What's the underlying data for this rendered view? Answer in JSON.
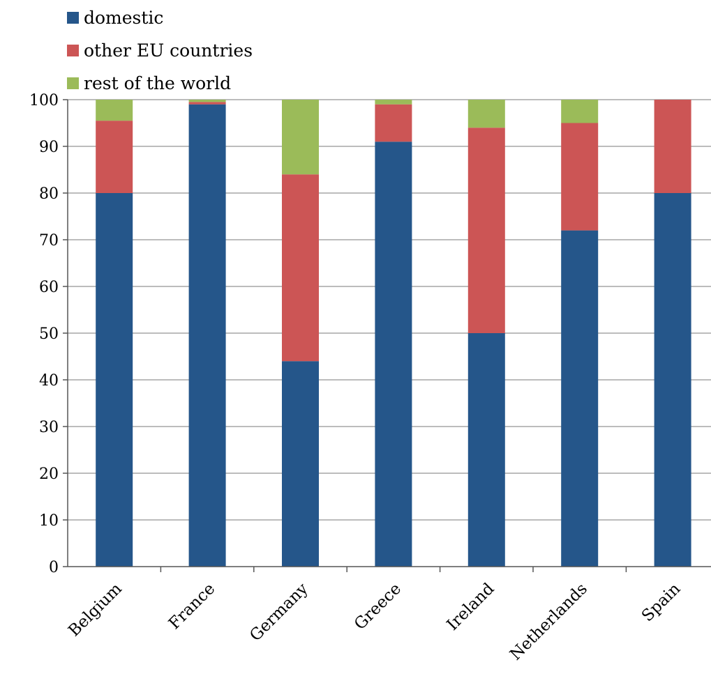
{
  "chart_data": {
    "type": "bar",
    "stacked": true,
    "categories": [
      "Belgium",
      "France",
      "Germany",
      "Greece",
      "Ireland",
      "Netherlands",
      "Spain"
    ],
    "series": [
      {
        "name": "domestic",
        "color": "#25568a",
        "values": [
          80,
          99,
          44,
          91,
          50,
          72,
          80
        ]
      },
      {
        "name": "other EU countries",
        "color": "#cc5555",
        "values": [
          15.5,
          0.5,
          40,
          8,
          44,
          23,
          20
        ]
      },
      {
        "name": "rest of the world",
        "color": "#9bbb59",
        "values": [
          4.5,
          0.5,
          16,
          1,
          6,
          5,
          0
        ]
      }
    ],
    "ylim": [
      0,
      100
    ],
    "yticks": [
      0,
      10,
      20,
      30,
      40,
      50,
      60,
      70,
      80,
      90,
      100
    ],
    "grid": true,
    "legend_position": "top-left",
    "title": "",
    "xlabel": "",
    "ylabel": ""
  }
}
